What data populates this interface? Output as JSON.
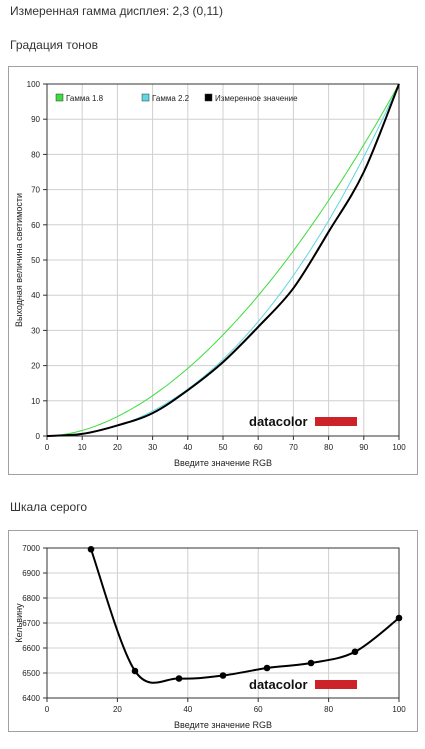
{
  "header": {
    "gamma_line": "Измеренная гамма дисплея: 2,3 (0,11)"
  },
  "sections": {
    "tone": "Градация тонов",
    "gray": "Шкала серого"
  },
  "brand": {
    "name": "datacolor",
    "color": "#cc2229"
  },
  "chart_data": [
    {
      "type": "line",
      "title": "Градация тонов",
      "xlabel": "Введите значение RGB",
      "ylabel": "Выходная величина светимости",
      "xlim": [
        0,
        100
      ],
      "ylim": [
        0,
        100
      ],
      "xticks": [
        0,
        10,
        20,
        30,
        40,
        50,
        60,
        70,
        80,
        90,
        100
      ],
      "yticks": [
        0,
        10,
        20,
        30,
        40,
        50,
        60,
        70,
        80,
        90,
        100
      ],
      "grid": true,
      "legend_position": "top-left",
      "series": [
        {
          "name": "Гамма 1.8",
          "color": "#3ddc3d",
          "function_gamma": 1.8
        },
        {
          "name": "Гамма 2.2",
          "color": "#5fd6e0",
          "function_gamma": 2.2
        },
        {
          "name": "Измеренное значение",
          "color": "#000000",
          "x": [
            0,
            10,
            20,
            30,
            40,
            50,
            60,
            70,
            80,
            90,
            100
          ],
          "y": [
            0,
            0.6,
            3,
            6.5,
            13,
            21,
            31,
            42,
            58,
            75,
            100
          ]
        }
      ]
    },
    {
      "type": "line",
      "title": "Шкала серого",
      "xlabel": "Введите значение RGB",
      "ylabel": "Кельвину",
      "xlim": [
        0,
        100
      ],
      "ylim": [
        6400,
        7000
      ],
      "xticks": [
        0,
        20,
        40,
        60,
        80,
        100
      ],
      "yticks": [
        6400,
        6500,
        6600,
        6700,
        6800,
        6900,
        7000
      ],
      "grid": true,
      "series": [
        {
          "name": "",
          "color": "#000000",
          "x": [
            12.5,
            25,
            37.5,
            50,
            62.5,
            75,
            87.5,
            100
          ],
          "y": [
            6995,
            6508,
            6478,
            6490,
            6520,
            6540,
            6585,
            6720
          ]
        }
      ]
    }
  ]
}
